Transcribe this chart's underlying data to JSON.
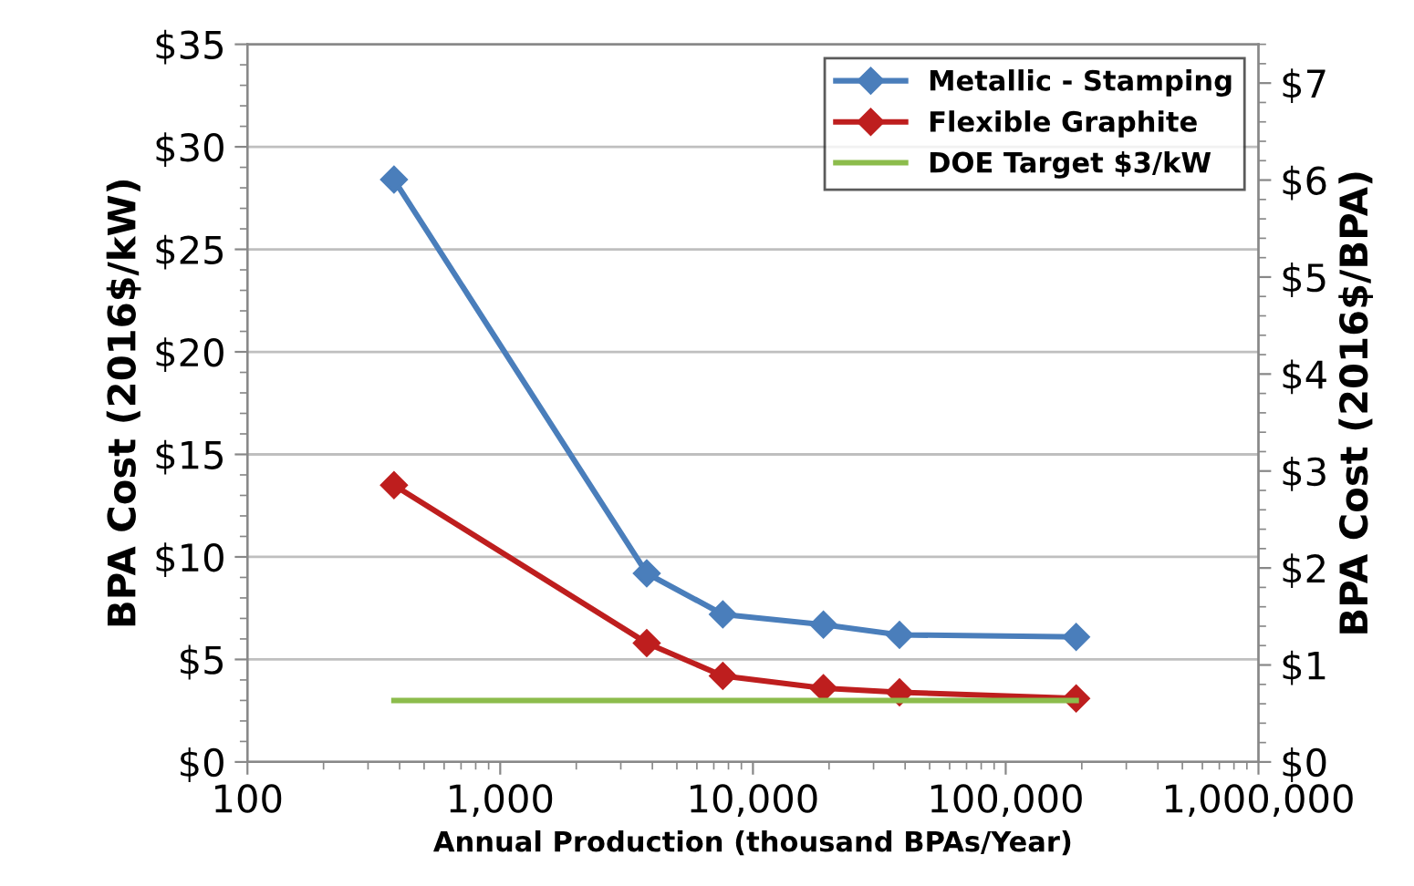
{
  "chart_data": {
    "type": "line",
    "xlabel": "Annual Production (thousand BPAs/Year)",
    "ylabel": "BPA Cost (2016$/kW)",
    "y2label": "BPA Cost (2016$/BPA)",
    "log": "x",
    "grid": "y",
    "legend": "top right",
    "xlim": [
      100,
      1000000
    ],
    "xticks": [
      100,
      {
        "value": 1000,
        "label": "1,000"
      },
      {
        "value": 10000,
        "label": "10,000"
      },
      {
        "value": 100000,
        "label": "100,000"
      },
      {
        "value": 1000000,
        "label": "1,000,000"
      }
    ],
    "ylim": [
      0,
      35
    ],
    "yticks": [
      {
        "value": 0,
        "label": "$0"
      },
      {
        "value": 5,
        "label": "$5"
      },
      {
        "value": 10,
        "label": "$10"
      },
      {
        "value": 15,
        "label": "$15"
      },
      {
        "value": 20,
        "label": "$20"
      },
      {
        "value": 25,
        "label": "$25"
      },
      {
        "value": 30,
        "label": "$30"
      },
      {
        "value": 35,
        "label": "$35"
      }
    ],
    "y2lim": [
      0,
      7.4
    ],
    "y2ticks": [
      {
        "value": 0,
        "label": "$0"
      },
      {
        "value": 1,
        "label": "$1"
      },
      {
        "value": 2,
        "label": "$2"
      },
      {
        "value": 3,
        "label": "$3"
      },
      {
        "value": 4,
        "label": "$4"
      },
      {
        "value": 5,
        "label": "$5"
      },
      {
        "value": 6,
        "label": "$6"
      },
      {
        "value": 7,
        "label": "$7"
      }
    ],
    "series": [
      {
        "name": "Metallic - Stamping",
        "color": "#4a7ebb",
        "marker": "diamond",
        "x": [
          380,
          3800,
          7600,
          19000,
          38000,
          190000
        ],
        "values": [
          28.4,
          9.2,
          7.2,
          6.7,
          6.2,
          6.1
        ]
      },
      {
        "name": "Flexible Graphite",
        "color": "#be1e1e",
        "marker": "diamond",
        "x": [
          380,
          3800,
          7600,
          19000,
          38000,
          190000
        ],
        "values": [
          13.5,
          5.8,
          4.2,
          3.6,
          3.4,
          3.1
        ]
      },
      {
        "name": "DOE Target $3/kW",
        "color": "#8cbc4c",
        "marker": "none",
        "x": [
          380,
          190000
        ],
        "values": [
          3,
          3
        ]
      }
    ]
  }
}
